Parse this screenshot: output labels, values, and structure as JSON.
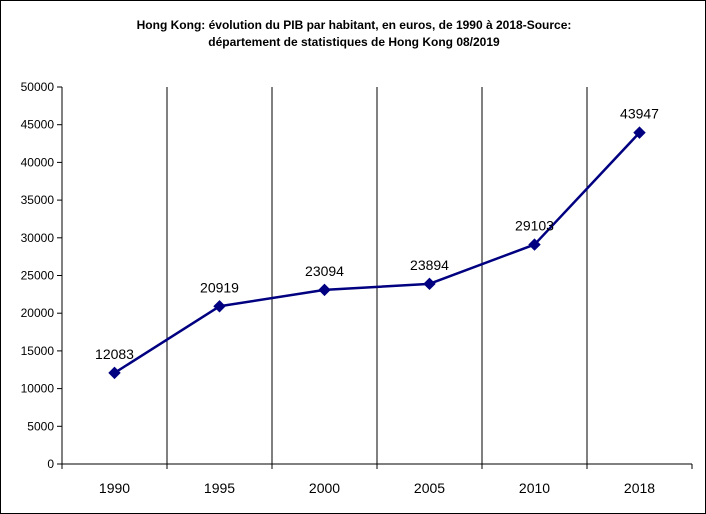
{
  "chart_data": {
    "type": "line",
    "title_line1": "Hong Kong: évolution du PIB par habitant, en euros, de 1990 à 2018-Source:",
    "title_line2": "département de statistiques de Hong Kong 08/2019",
    "xlabel": "",
    "ylabel": "",
    "categories": [
      "1990",
      "1995",
      "2000",
      "2005",
      "2010",
      "2018"
    ],
    "series": [
      {
        "values": [
          12083,
          20919,
          23094,
          23894,
          29103,
          43947
        ],
        "color": "#000080",
        "marker": "diamond"
      }
    ],
    "data_labels": [
      "12083",
      "20919",
      "23094",
      "23894",
      "29103",
      "43947"
    ],
    "ylim": [
      0,
      50000
    ],
    "yticks": [
      0,
      5000,
      10000,
      15000,
      20000,
      25000,
      30000,
      35000,
      40000,
      45000,
      50000
    ],
    "ytick_labels": [
      "0",
      "5000",
      "10000",
      "15000",
      "20000",
      "25000",
      "30000",
      "35000",
      "40000",
      "45000",
      "50000"
    ],
    "grid": "vertical category separators",
    "legend": "none"
  }
}
